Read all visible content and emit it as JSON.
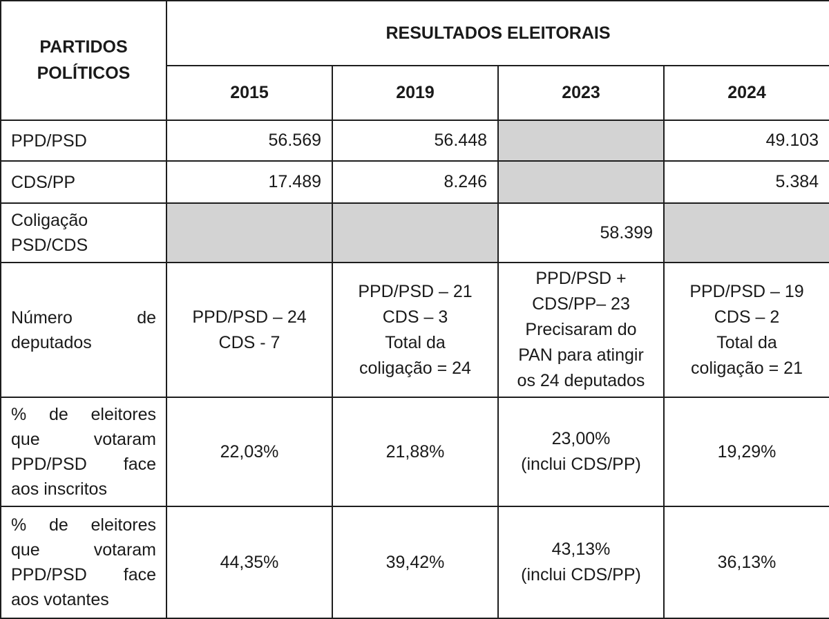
{
  "colors": {
    "shaded_cell": "#d3d3d3",
    "border": "#1d1d1d",
    "text": "#1a1a1a"
  },
  "header": {
    "row_label_column": "PARTIDOS\nPOLÍTICOS",
    "group_title": "RESULTADOS ELEITORAIS",
    "years": [
      "2015",
      "2019",
      "2023",
      "2024"
    ]
  },
  "rows": [
    {
      "label": "PPD/PSD",
      "cells": [
        {
          "text": "56.569",
          "shaded": false
        },
        {
          "text": "56.448",
          "shaded": false
        },
        {
          "text": "",
          "shaded": true
        },
        {
          "text": "49.103",
          "shaded": false
        }
      ]
    },
    {
      "label": "CDS/PP",
      "cells": [
        {
          "text": "17.489",
          "shaded": false
        },
        {
          "text": "8.246",
          "shaded": false
        },
        {
          "text": "",
          "shaded": true
        },
        {
          "text": "5.384",
          "shaded": false
        }
      ]
    },
    {
      "label": "Coligação\nPSD/CDS",
      "cells": [
        {
          "text": "",
          "shaded": true
        },
        {
          "text": "",
          "shaded": true
        },
        {
          "text": "58.399",
          "shaded": false
        },
        {
          "text": "",
          "shaded": true
        }
      ]
    },
    {
      "label_lines": [
        "Número de",
        "deputados"
      ],
      "cells": [
        {
          "text": "PPD/PSD – 24\nCDS - 7",
          "shaded": false
        },
        {
          "text": "PPD/PSD – 21\nCDS – 3\nTotal da\ncoligação = 24",
          "shaded": false
        },
        {
          "text": "PPD/PSD +\nCDS/PP– 23\nPrecisaram do\nPAN para atingir\nos 24 deputados",
          "shaded": false
        },
        {
          "text": "PPD/PSD – 19\nCDS – 2\nTotal da\ncoligação = 21",
          "shaded": false
        }
      ]
    },
    {
      "label_lines": [
        "% de eleitores",
        "que votaram",
        "PPD/PSD face",
        "aos inscritos"
      ],
      "cells": [
        {
          "text": "22,03%",
          "shaded": false
        },
        {
          "text": "21,88%",
          "shaded": false
        },
        {
          "text": "23,00%\n(inclui CDS/PP)",
          "shaded": false
        },
        {
          "text": "19,29%",
          "shaded": false
        }
      ]
    },
    {
      "label_lines": [
        "% de eleitores",
        "que votaram",
        "PPD/PSD face",
        "aos votantes"
      ],
      "cells": [
        {
          "text": "44,35%",
          "shaded": false
        },
        {
          "text": "39,42%",
          "shaded": false
        },
        {
          "text": "43,13%\n(inclui CDS/PP)",
          "shaded": false
        },
        {
          "text": "36,13%",
          "shaded": false
        }
      ]
    }
  ]
}
